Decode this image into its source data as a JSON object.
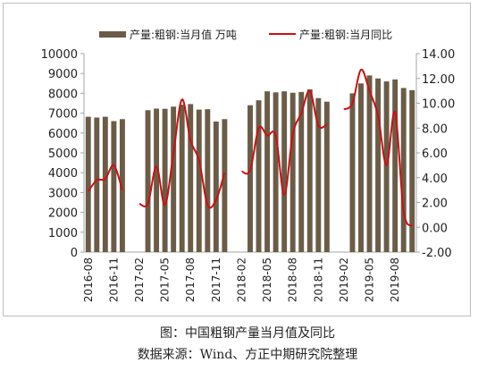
{
  "caption": {
    "title": "图：中国粗钢产量当月值及同比",
    "source": "数据来源：Wind、方正中期研究院整理"
  },
  "colors": {
    "bar": "#6b5c47",
    "line": "#cc1010",
    "axis": "#a6a6a6",
    "text": "#222222"
  },
  "chart_data": {
    "type": "bar",
    "title": "",
    "grid": false,
    "legend_position": "top",
    "categories": [
      "2016-08",
      "2016-09",
      "2016-10",
      "2016-11",
      "2016-12",
      "2017-01",
      "2017-02",
      "2017-03",
      "2017-04",
      "2017-05",
      "2017-06",
      "2017-07",
      "2017-08",
      "2017-09",
      "2017-10",
      "2017-11",
      "2017-12",
      "2018-01",
      "2018-02",
      "2018-03",
      "2018-04",
      "2018-05",
      "2018-06",
      "2018-07",
      "2018-08",
      "2018-09",
      "2018-10",
      "2018-11",
      "2018-12",
      "2019-01",
      "2019-02",
      "2019-03",
      "2019-04",
      "2019-05",
      "2019-06",
      "2019-07",
      "2019-08",
      "2019-09",
      "2019-10"
    ],
    "x_tick_labels": [
      "2016-08",
      "2016-11",
      "2017-02",
      "2017-05",
      "2017-08",
      "2017-11",
      "2018-02",
      "2018-05",
      "2018-08",
      "2018-11",
      "2019-02",
      "2019-05",
      "2019-08"
    ],
    "y_left": {
      "min": 0,
      "max": 10000,
      "step": 1000,
      "ticks": [
        "0",
        "1000",
        "2000",
        "3000",
        "4000",
        "5000",
        "6000",
        "7000",
        "8000",
        "9000",
        "10000"
      ]
    },
    "y_right": {
      "min": -2,
      "max": 14,
      "step": 2,
      "ticks": [
        "-2.00",
        "0.00",
        "2.00",
        "4.00",
        "6.00",
        "8.00",
        "10.00",
        "12.00",
        "14.00"
      ]
    },
    "series": [
      {
        "name": "产量:粗钢:当月值 万吨",
        "type": "bar",
        "axis": "left",
        "values": [
          6820,
          6780,
          6820,
          6600,
          6700,
          null,
          null,
          7150,
          7230,
          7220,
          7330,
          7430,
          7460,
          7180,
          7200,
          6580,
          6700,
          null,
          null,
          7400,
          7650,
          8100,
          8050,
          8100,
          8030,
          8070,
          8200,
          7760,
          7580,
          null,
          null,
          8000,
          8500,
          8900,
          8750,
          8600,
          8700,
          8270,
          8160
        ]
      },
      {
        "name": "产量:粗钢:当月同比",
        "type": "line",
        "axis": "right",
        "values": [
          2.9,
          3.8,
          3.9,
          5.0,
          3.0,
          null,
          1.9,
          1.9,
          4.9,
          1.8,
          6.0,
          10.3,
          7.0,
          5.4,
          1.8,
          2.2,
          4.4,
          null,
          4.5,
          4.6,
          8.0,
          7.4,
          7.4,
          2.6,
          7.5,
          9.2,
          11.0,
          8.2,
          8.3,
          null,
          9.5,
          10.0,
          12.7,
          11.0,
          9.0,
          5.0,
          9.3,
          1.3,
          0.1
        ]
      }
    ]
  }
}
